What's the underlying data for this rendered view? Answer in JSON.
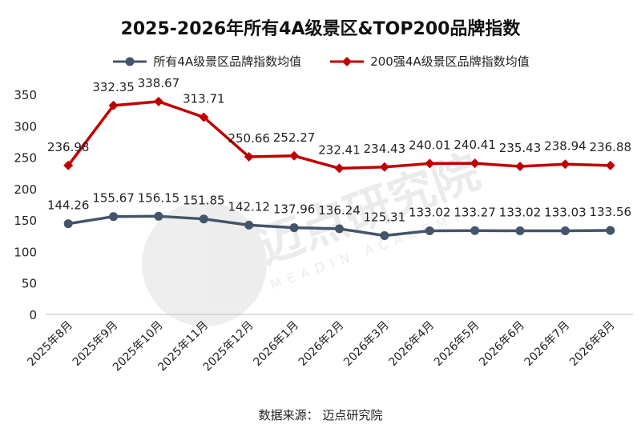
{
  "chart_data": {
    "type": "line",
    "title": "2025-2026年所有4A级景区&TOP200品牌指数",
    "categories": [
      "2025年8月",
      "2025年9月",
      "2025年10月",
      "2025年11月",
      "2025年12月",
      "2026年1月",
      "2026年2月",
      "2026年3月",
      "2026年4月",
      "2026年5月",
      "2026年6月",
      "2026年7月",
      "2026年8月"
    ],
    "series": [
      {
        "name": "所有4A级景区品牌指数均值",
        "color": "#44546a",
        "marker": "circle",
        "values": [
          144.26,
          155.67,
          156.15,
          151.85,
          142.12,
          137.96,
          136.24,
          125.31,
          133.02,
          133.27,
          133.02,
          133.03,
          133.56
        ],
        "labels": [
          "144.26",
          "155.67",
          "156.15",
          "151.85",
          "142.12",
          "137.96",
          "136.24",
          "125.31",
          "133.02",
          "133.27",
          "133.02",
          "133.03",
          "133.56"
        ]
      },
      {
        "name": "200强4A级景区品牌指数均值",
        "color": "#c00000",
        "marker": "diamond",
        "values": [
          236.98,
          332.35,
          338.67,
          313.71,
          250.66,
          252.27,
          232.41,
          234.43,
          240.01,
          240.41,
          235.43,
          238.94,
          236.88
        ],
        "labels": [
          "236.98",
          "332.35",
          "338.67",
          "313.71",
          "250.66",
          "252.27",
          "232.41",
          "234.43",
          "240.01",
          "240.41",
          "235.43",
          "238.94",
          "236.88"
        ]
      }
    ],
    "ylim": [
      0,
      350
    ],
    "yticks": [
      0,
      50,
      100,
      150,
      200,
      250,
      300,
      350
    ],
    "grid": false,
    "legend_position": "top"
  },
  "source": "数据来源： 迈点研究院",
  "watermark": {
    "text": "迈点研究院",
    "subtext": "MEADIN ACADEMY"
  }
}
